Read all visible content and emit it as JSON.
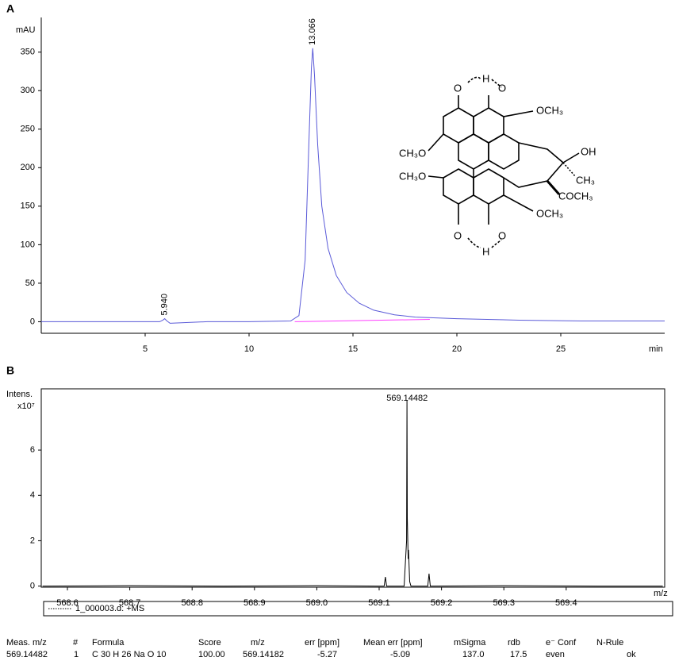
{
  "panel_labels": [
    "A",
    "B"
  ],
  "chart_data": [
    {
      "type": "line",
      "y_label": "mAU",
      "x_label": "min",
      "xlim": [
        0,
        30
      ],
      "ylim": [
        -15,
        395
      ],
      "xticks": [
        5,
        10,
        15,
        20,
        25
      ],
      "yticks": [
        0,
        50,
        100,
        150,
        200,
        250,
        300,
        350
      ],
      "series": [
        {
          "color": "#5a5ad8",
          "x": [
            0,
            2,
            4,
            5.7,
            5.85,
            5.94,
            6.05,
            6.2,
            8,
            10,
            12,
            12.4,
            12.7,
            12.9,
            13.0,
            13.066,
            13.15,
            13.3,
            13.5,
            13.8,
            14.2,
            14.7,
            15.3,
            16,
            17,
            18,
            20,
            23,
            26,
            30
          ],
          "values": [
            0,
            0,
            0,
            0,
            2,
            4,
            1,
            -2,
            0,
            0,
            1,
            8,
            80,
            250,
            330,
            355,
            320,
            230,
            150,
            95,
            60,
            38,
            24,
            15,
            9,
            6,
            4,
            2,
            1,
            1
          ]
        },
        {
          "color": "#ff40ff",
          "x": [
            12.2,
            18.7
          ],
          "values": [
            0,
            3
          ]
        }
      ],
      "annotations": [
        {
          "text": "13.066",
          "x": 13.066,
          "y": 355
        },
        {
          "text": "5.940",
          "x": 5.94,
          "y": 4
        }
      ]
    },
    {
      "type": "line",
      "y_label": "Intens.",
      "y_scale_label": "x10⁷",
      "x_label": "m/z",
      "xlim": [
        568.558,
        569.558
      ],
      "ylim": [
        -0.05,
        8.7
      ],
      "xticks": [
        568.6,
        568.7,
        568.8,
        568.9,
        {
          "value": 569.0,
          "label": "569.0"
        },
        569.1,
        569.2,
        569.3,
        569.4
      ],
      "yticks": [
        0,
        2,
        4,
        6
      ],
      "series": [
        {
          "name": "1_000003.d: +MS",
          "color": "#000000",
          "x": [
            568.56,
            568.7,
            568.85,
            569.0,
            569.1,
            569.108,
            569.11,
            569.112,
            569.14,
            569.144,
            569.1446,
            569.1452,
            569.1465,
            569.147,
            569.149,
            569.151,
            569.178,
            569.18,
            569.182,
            569.3,
            569.45,
            569.555
          ],
          "values": [
            0,
            0.02,
            0,
            0.02,
            0,
            0,
            0.4,
            0,
            0,
            2,
            8.2,
            3,
            1.2,
            1.6,
            0.2,
            0,
            0,
            0.55,
            0,
            0.02,
            0,
            0
          ]
        }
      ],
      "annotations": [
        {
          "text": "569.14482",
          "x": 569.14482,
          "y": 8.2
        }
      ]
    }
  ],
  "structure": {
    "labels": [
      "O",
      "H",
      "O",
      "OCH₃",
      "CH₃O",
      "OH",
      "CH₃",
      "CH₃O",
      "COCH₃",
      "OCH₃",
      "O",
      "H",
      "O"
    ]
  },
  "table": {
    "headers": [
      "Meas. m/z",
      "#",
      "Formula",
      "Score",
      "m/z",
      "err [ppm]",
      "Mean err [ppm]",
      "mSigma",
      "rdb",
      "e⁻ Conf",
      "N-Rule"
    ],
    "rows": [
      [
        "569.14482",
        "1",
        "C 30 H 26 Na O 10",
        "100.00",
        "569.14182",
        "-5.27",
        "-5.09",
        "137.0",
        "17.5",
        "even",
        "ok"
      ]
    ]
  }
}
